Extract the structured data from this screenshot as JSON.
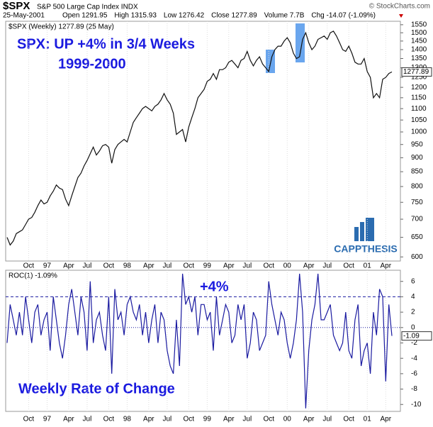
{
  "header": {
    "symbol": "$SPX",
    "name": "S&P 500 Large Cap Index INDX",
    "credit": "© StockCharts.com",
    "date": "25-May-2001",
    "stats": [
      "Open 1291.95",
      "High 1315.93",
      "Low 1276.42",
      "Close 1277.89",
      "Volume 7.7B",
      "Chg -14.07 (-1.09%)"
    ]
  },
  "logo": "CAPPTHESIS",
  "chart_data": [
    {
      "type": "line",
      "legend": "$SPX (Weekly) 1277.89 (25 May)",
      "log_scale": true,
      "color": "#111111",
      "annotations": [
        "SPX: UP +4% in 3/4 Weeks",
        "1999-2000"
      ],
      "categories": [
        null,
        null,
        null,
        null,
        null,
        null,
        null,
        "Oct",
        null,
        null,
        null,
        null,
        null,
        "97",
        null,
        null,
        null,
        null,
        null,
        null,
        "Apr",
        null,
        null,
        null,
        null,
        null,
        "Jul",
        null,
        null,
        null,
        null,
        null,
        null,
        "Oct",
        null,
        null,
        null,
        null,
        null,
        "98",
        null,
        null,
        null,
        null,
        null,
        null,
        "Apr",
        null,
        null,
        null,
        null,
        null,
        "Jul",
        null,
        null,
        null,
        null,
        null,
        null,
        "Oct",
        null,
        null,
        null,
        null,
        null,
        "99",
        null,
        null,
        null,
        null,
        null,
        null,
        "Apr",
        null,
        null,
        null,
        null,
        null,
        "Jul",
        null,
        null,
        null,
        null,
        null,
        null,
        "Oct",
        null,
        null,
        null,
        null,
        null,
        "00",
        null,
        null,
        null,
        null,
        null,
        null,
        "Apr",
        null,
        null,
        null,
        null,
        null,
        "Jul",
        null,
        null,
        null,
        null,
        null,
        null,
        "Oct",
        null,
        null,
        null,
        null,
        null,
        "01",
        null,
        null,
        null,
        null,
        null,
        "Apr",
        null,
        null
      ],
      "values": [
        650,
        630,
        640,
        660,
        665,
        670,
        685,
        700,
        705,
        720,
        740,
        757,
        745,
        750,
        770,
        785,
        805,
        795,
        790,
        760,
        740,
        770,
        800,
        830,
        845,
        870,
        890,
        915,
        940,
        910,
        925,
        945,
        950,
        940,
        880,
        930,
        950,
        960,
        970,
        960,
        1000,
        1040,
        1060,
        1080,
        1100,
        1110,
        1100,
        1090,
        1110,
        1120,
        1140,
        1170,
        1140,
        1120,
        1080,
        990,
        1000,
        1010,
        960,
        1020,
        1060,
        1100,
        1150,
        1170,
        1190,
        1230,
        1240,
        1270,
        1240,
        1290,
        1290,
        1300,
        1330,
        1340,
        1320,
        1300,
        1340,
        1350,
        1390,
        1340,
        1310,
        1340,
        1360,
        1320,
        1300,
        1280,
        1360,
        1400,
        1420,
        1420,
        1450,
        1470,
        1440,
        1380,
        1350,
        1360,
        1460,
        1500,
        1440,
        1400,
        1420,
        1460,
        1470,
        1480,
        1460,
        1500,
        1510,
        1480,
        1440,
        1400,
        1390,
        1420,
        1380,
        1330,
        1320,
        1320,
        1350,
        1280,
        1250,
        1150,
        1170,
        1150,
        1240,
        1250,
        1270,
        1277.89
      ],
      "ylim": [
        590,
        1572
      ],
      "yticks": [
        600,
        650,
        700,
        750,
        800,
        850,
        900,
        950,
        1000,
        1050,
        1100,
        1150,
        1200,
        1250,
        1300,
        1350,
        1400,
        1450,
        1500,
        1550
      ]
    },
    {
      "type": "line",
      "legend": "ROC(1) -1.09%",
      "color": "#1a1aa0",
      "annotations": [
        "+4%",
        "Weekly Rate of Change"
      ],
      "reference_lines": [
        4,
        0
      ],
      "values": [
        -2,
        3,
        1,
        -1,
        2,
        -1,
        4,
        1,
        -2,
        2,
        3,
        -1,
        1,
        2,
        -3,
        4,
        1,
        -2,
        -4,
        -1,
        3,
        5,
        2,
        -1,
        4,
        2,
        -3,
        6,
        -2,
        1,
        2,
        -1,
        -3,
        4,
        -6,
        5,
        1,
        2,
        -1,
        3,
        4,
        2,
        1,
        3,
        -1,
        2,
        -2,
        1,
        3,
        -2,
        2,
        1,
        -3,
        -5,
        -6,
        1,
        -5,
        7,
        3,
        4,
        2,
        4,
        -1,
        3,
        3,
        1,
        2,
        -3,
        4,
        -1,
        1,
        3,
        2,
        -2,
        -1,
        3,
        1,
        3,
        -4,
        -2,
        2,
        1,
        -3,
        -2,
        -1,
        6,
        3,
        1,
        -1,
        2,
        1,
        -2,
        -4,
        -2,
        1,
        7,
        2,
        -10.5,
        -3,
        1,
        3,
        7,
        1,
        1,
        2,
        3,
        -1,
        -2,
        -3,
        -2,
        2,
        -3,
        -4,
        1,
        3,
        -5,
        -3,
        -2,
        -6,
        2,
        -1,
        5,
        4,
        -7,
        3,
        -1.09
      ],
      "ylim": [
        -10.9,
        7.45
      ],
      "yticks": [
        -10,
        -8,
        -6,
        -4,
        -2,
        0,
        2,
        4,
        6
      ]
    }
  ]
}
